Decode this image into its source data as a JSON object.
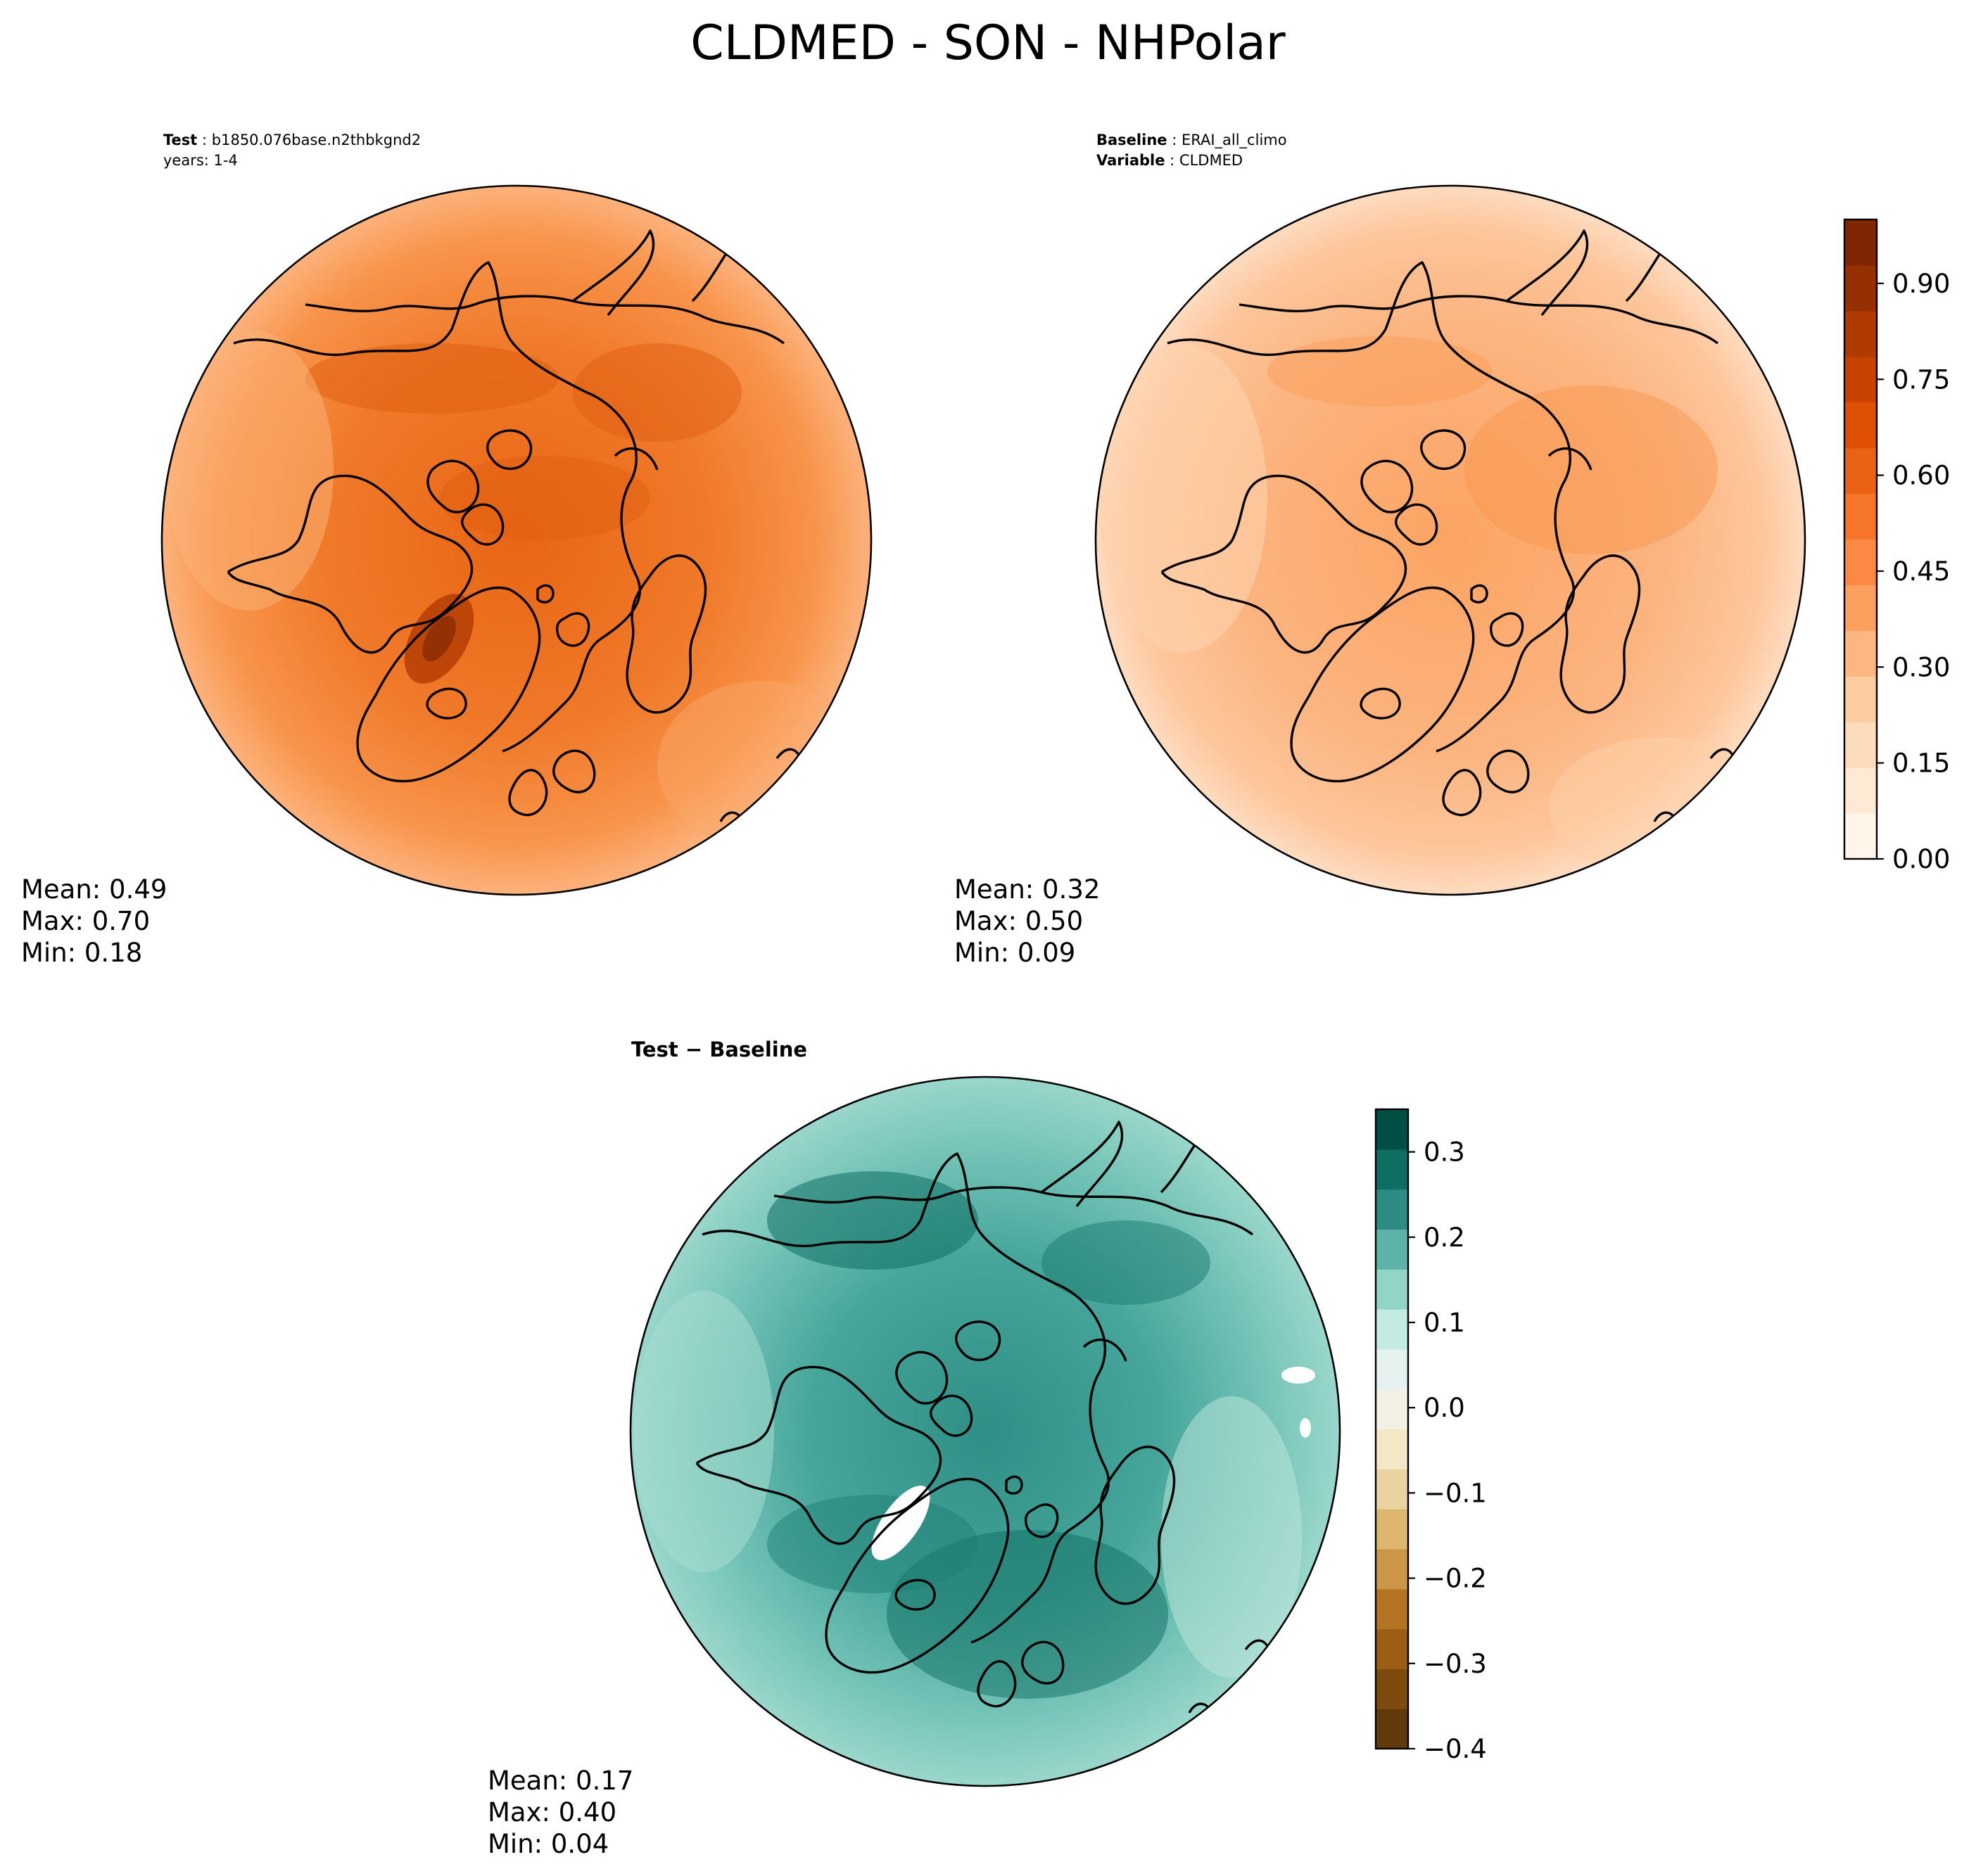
{
  "figure": {
    "title": "CLDMED - SON - NHPolar"
  },
  "chart_data": [
    {
      "type": "heatmap",
      "name": "test-panel",
      "header": [
        {
          "label": "Test",
          "value": "b1850.076base.n2thbkgnd2"
        },
        {
          "label": "",
          "value": "years: 1-4"
        }
      ],
      "projection": "north-polar-stereographic",
      "variable": "CLDMED",
      "stats": {
        "mean_label": "Mean:",
        "mean": "0.49",
        "max_label": "Max:",
        "max": "0.70",
        "min_label": "Min:",
        "min": "0.18"
      },
      "colormap": "Oranges",
      "mean_value": 0.49,
      "max_value": 0.7,
      "min_value": 0.18
    },
    {
      "type": "heatmap",
      "name": "baseline-panel",
      "header": [
        {
          "label": "Baseline",
          "value": "ERAI_all_climo"
        },
        {
          "label": "Variable",
          "value": "CLDMED"
        }
      ],
      "projection": "north-polar-stereographic",
      "variable": "CLDMED",
      "stats": {
        "mean_label": "Mean:",
        "mean": "0.32",
        "max_label": "Max:",
        "max": "0.50",
        "min_label": "Min:",
        "min": "0.09"
      },
      "colormap": "Oranges",
      "mean_value": 0.32,
      "max_value": 0.5,
      "min_value": 0.09,
      "colorbar": {
        "range": [
          0.0,
          1.0
        ],
        "ticks": [
          "0.00",
          "0.15",
          "0.30",
          "0.45",
          "0.60",
          "0.75",
          "0.90"
        ],
        "tick_values": [
          0.0,
          0.15,
          0.3,
          0.45,
          0.6,
          0.75,
          0.9
        ],
        "colors": [
          "#fff5eb",
          "#fee9d5",
          "#fddcbd",
          "#fdcca0",
          "#fdb67f",
          "#fd9f5f",
          "#fc8943",
          "#f67528",
          "#ea6215",
          "#dd5006",
          "#c84302",
          "#b13a03",
          "#963003",
          "#7f2704"
        ]
      }
    },
    {
      "type": "heatmap",
      "name": "difference-panel",
      "header": [
        {
          "label": "Test",
          "value": "Test − Baseline"
        }
      ],
      "projection": "north-polar-stereographic",
      "variable": "CLDMED",
      "stats": {
        "mean_label": "Mean:",
        "mean": "0.17",
        "max_label": "Max:",
        "max": "0.40",
        "min_label": "Min:",
        "min": "0.04"
      },
      "colormap": "BrBG",
      "mean_value": 0.17,
      "max_value": 0.4,
      "min_value": 0.04,
      "colorbar": {
        "range": [
          -0.4,
          0.35
        ],
        "ticks": [
          "−0.4",
          "−0.3",
          "−0.2",
          "−0.1",
          "0.0",
          "0.1",
          "0.2",
          "0.3"
        ],
        "tick_values": [
          -0.4,
          -0.3,
          -0.2,
          -0.1,
          0.0,
          0.1,
          0.2,
          0.3
        ],
        "colors": [
          "#603a0a",
          "#7d4b0d",
          "#9a5e14",
          "#b57424",
          "#cc9547",
          "#dcb76d",
          "#e9d3a1",
          "#f3e8c6",
          "#f3f0e6",
          "#e5f2ef",
          "#c4ebe3",
          "#93d4c8",
          "#5db3a8",
          "#2d8d84",
          "#0f6d62",
          "#014f44"
        ]
      }
    }
  ]
}
